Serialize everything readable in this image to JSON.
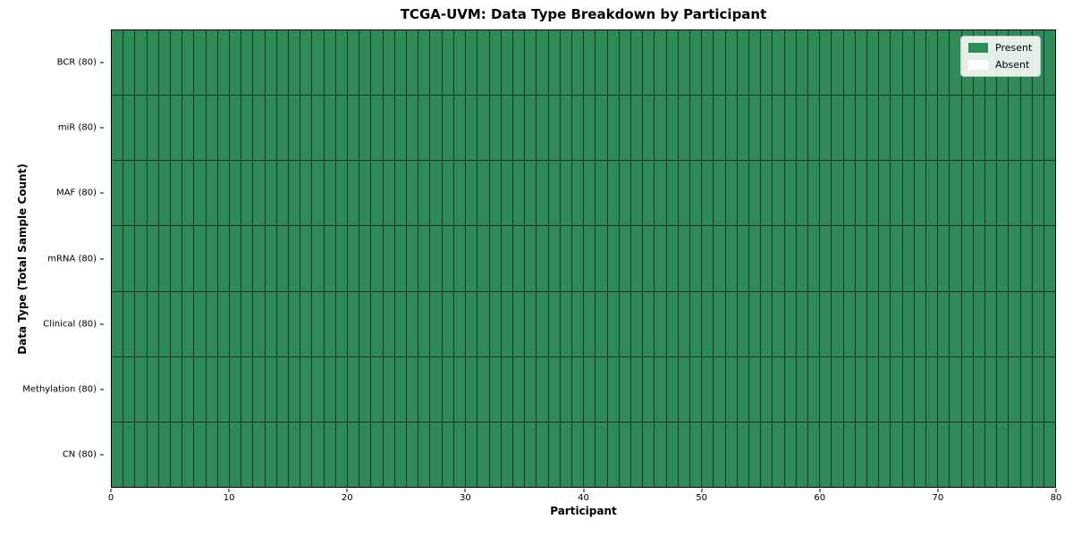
{
  "chart_data": {
    "type": "heatmap",
    "title": "TCGA-UVM: Data Type Breakdown by Participant",
    "xlabel": "Participant",
    "ylabel": "Data Type (Total Sample Count)",
    "xlim": [
      0,
      80
    ],
    "x_ticks": [
      0,
      10,
      20,
      30,
      40,
      50,
      60,
      70,
      80
    ],
    "x_tick_labels": [
      "0",
      "10",
      "20",
      "30",
      "40",
      "50",
      "60",
      "70",
      "80"
    ],
    "n_participants": 80,
    "rows": [
      {
        "label": "BCR (80)",
        "name": "BCR",
        "total_samples": 80,
        "present_count": 80,
        "absent_count": 0
      },
      {
        "label": "miR (80)",
        "name": "miR",
        "total_samples": 80,
        "present_count": 80,
        "absent_count": 0
      },
      {
        "label": "MAF (80)",
        "name": "MAF",
        "total_samples": 80,
        "present_count": 80,
        "absent_count": 0
      },
      {
        "label": "mRNA (80)",
        "name": "mRNA",
        "total_samples": 80,
        "present_count": 80,
        "absent_count": 0
      },
      {
        "label": "Clinical (80)",
        "name": "Clinical",
        "total_samples": 80,
        "present_count": 80,
        "absent_count": 0
      },
      {
        "label": "Methylation (80)",
        "name": "Methylation",
        "total_samples": 80,
        "present_count": 80,
        "absent_count": 0
      },
      {
        "label": "CN (80)",
        "name": "CN",
        "total_samples": 80,
        "present_count": 80,
        "absent_count": 0
      }
    ],
    "all_present": true,
    "grid_on": true,
    "colors": {
      "present": "#2e8b57",
      "absent": "#ffffff",
      "grid_line": "#1f1f1f",
      "spine": "#000000"
    },
    "legend": {
      "position": "upper right",
      "entries": [
        {
          "label": "Present",
          "color": "#2e8b57"
        },
        {
          "label": "Absent",
          "color": "#ffffff"
        }
      ]
    }
  }
}
